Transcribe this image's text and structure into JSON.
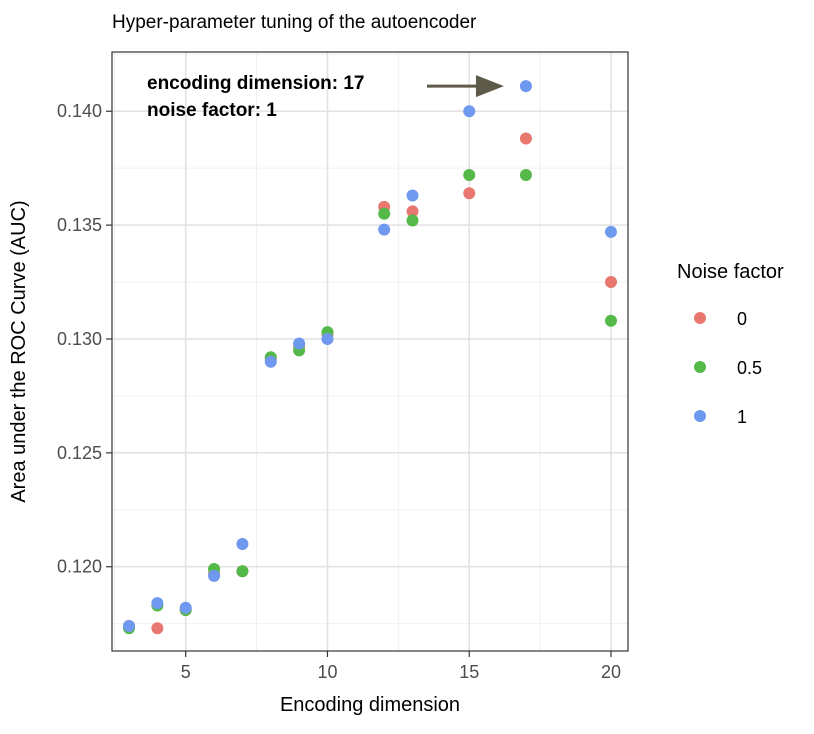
{
  "chart_data": {
    "type": "scatter",
    "title": "Hyper-parameter tuning of the autoencoder",
    "xlabel": "Encoding dimension",
    "ylabel": "Area under the ROC Curve (AUC)",
    "xlim": [
      2.4,
      20.6
    ],
    "ylim": [
      0.1163,
      0.1426
    ],
    "x_ticks": [
      5,
      10,
      15,
      20
    ],
    "x_tick_labels": [
      "5",
      "10",
      "15",
      "20"
    ],
    "y_ticks": [
      0.12,
      0.125,
      0.13,
      0.135,
      0.14
    ],
    "y_tick_labels": [
      "0.120",
      "0.125",
      "0.130",
      "0.135",
      "0.140"
    ],
    "grid": true,
    "legend": {
      "title": "Noise factor",
      "position": "right"
    },
    "series": [
      {
        "name": "0",
        "color": "#e8776f",
        "x": [
          3,
          4,
          5,
          6,
          7,
          8,
          9,
          10,
          12,
          13,
          15,
          17,
          20
        ],
        "y": [
          0.1174,
          0.1173,
          0.1181,
          0.1197,
          0.1198,
          0.1291,
          0.1297,
          0.1302,
          0.1358,
          0.1356,
          0.1364,
          0.1388,
          0.1325
        ]
      },
      {
        "name": "0.5",
        "color": "#55b94a",
        "x": [
          3,
          4,
          5,
          6,
          7,
          8,
          9,
          10,
          12,
          13,
          15,
          17,
          20
        ],
        "y": [
          0.1173,
          0.1183,
          0.1181,
          0.1199,
          0.1198,
          0.1292,
          0.1295,
          0.1303,
          0.1355,
          0.1352,
          0.1372,
          0.1372,
          0.1308
        ]
      },
      {
        "name": "1",
        "color": "#6e99ee",
        "x": [
          3,
          4,
          5,
          6,
          7,
          8,
          9,
          10,
          12,
          13,
          15,
          17,
          20
        ],
        "y": [
          0.1174,
          0.1184,
          0.1182,
          0.1196,
          0.121,
          0.129,
          0.1298,
          0.13,
          0.1348,
          0.1363,
          0.14,
          0.1411,
          0.1347
        ]
      }
    ],
    "annotations": [
      {
        "lines": [
          "encoding dimension: 17",
          "noise factor: 1"
        ],
        "arrow_color": "#5e5a4a",
        "points_to": {
          "x": 17,
          "y": 0.1411
        }
      }
    ]
  }
}
